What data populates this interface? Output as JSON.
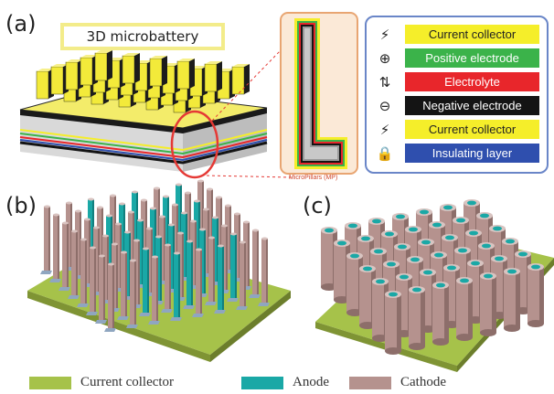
{
  "panel_labels": {
    "a": "(a)",
    "b": "(b)",
    "c": "(c)"
  },
  "title": "3D microbattery",
  "micropillar_caption": "MicroPillars (MP)",
  "layer_legend": [
    {
      "icon": "lightning-icon",
      "glyph": "⚡",
      "label": "Current collector",
      "color": "#f5ee2a",
      "text_color": "#222222"
    },
    {
      "icon": "plus-circle-icon",
      "glyph": "⊕",
      "label": "Positive electrode",
      "color": "#3bb34a",
      "text_color": "#ffffff"
    },
    {
      "icon": "arrows-icon",
      "glyph": "⇅",
      "label": "Electrolyte",
      "color": "#e8262b",
      "text_color": "#ffffff"
    },
    {
      "icon": "minus-circle-icon",
      "glyph": "⊖",
      "label": "Negative electrode",
      "color": "#141414",
      "text_color": "#ffffff"
    },
    {
      "icon": "lightning-icon",
      "glyph": "⚡",
      "label": "Current collector",
      "color": "#f5ee2a",
      "text_color": "#222222"
    },
    {
      "icon": "lock-icon",
      "glyph": "🔒",
      "label": "Insulating layer",
      "color": "#2f4fae",
      "text_color": "#ffffff"
    }
  ],
  "bottom_legend": [
    {
      "label": "Current collector",
      "color": "#a6c24a"
    },
    {
      "label": "Anode",
      "color": "#1aa8a6"
    },
    {
      "label": "Cathode",
      "color": "#b5928e"
    }
  ]
}
